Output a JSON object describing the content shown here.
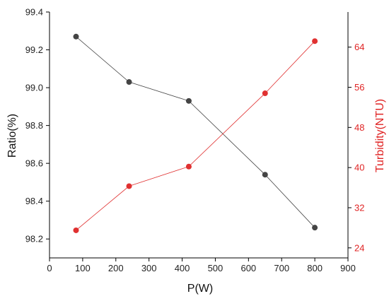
{
  "chart_data": {
    "type": "line",
    "title": "",
    "xlabel": "P(W)",
    "ylabel": "Ratio(%)",
    "y2label": "Turbidity(NTU)",
    "xlim": [
      0,
      900
    ],
    "ylim": [
      98.1,
      99.4
    ],
    "y2lim": [
      22,
      71
    ],
    "x_ticks": [
      "0",
      "100",
      "200",
      "300",
      "400",
      "500",
      "600",
      "700",
      "800",
      "900"
    ],
    "y_ticks": [
      "98.2",
      "98.4",
      "98.6",
      "98.8",
      "99.0",
      "99.2",
      "99.4"
    ],
    "y2_ticks": [
      "24",
      "32",
      "40",
      "48",
      "56",
      "64"
    ],
    "grid": false,
    "legend": "none",
    "series": [
      {
        "axis": "left",
        "color": "#444444",
        "x": [
          80,
          240,
          420,
          650,
          800
        ],
        "values": [
          99.27,
          99.03,
          98.93,
          98.54,
          98.26
        ]
      },
      {
        "axis": "right",
        "color": "#e03030",
        "x": [
          80,
          240,
          420,
          650,
          800
        ],
        "values": [
          27.5,
          36.3,
          40.2,
          54.8,
          65.2
        ]
      }
    ]
  }
}
